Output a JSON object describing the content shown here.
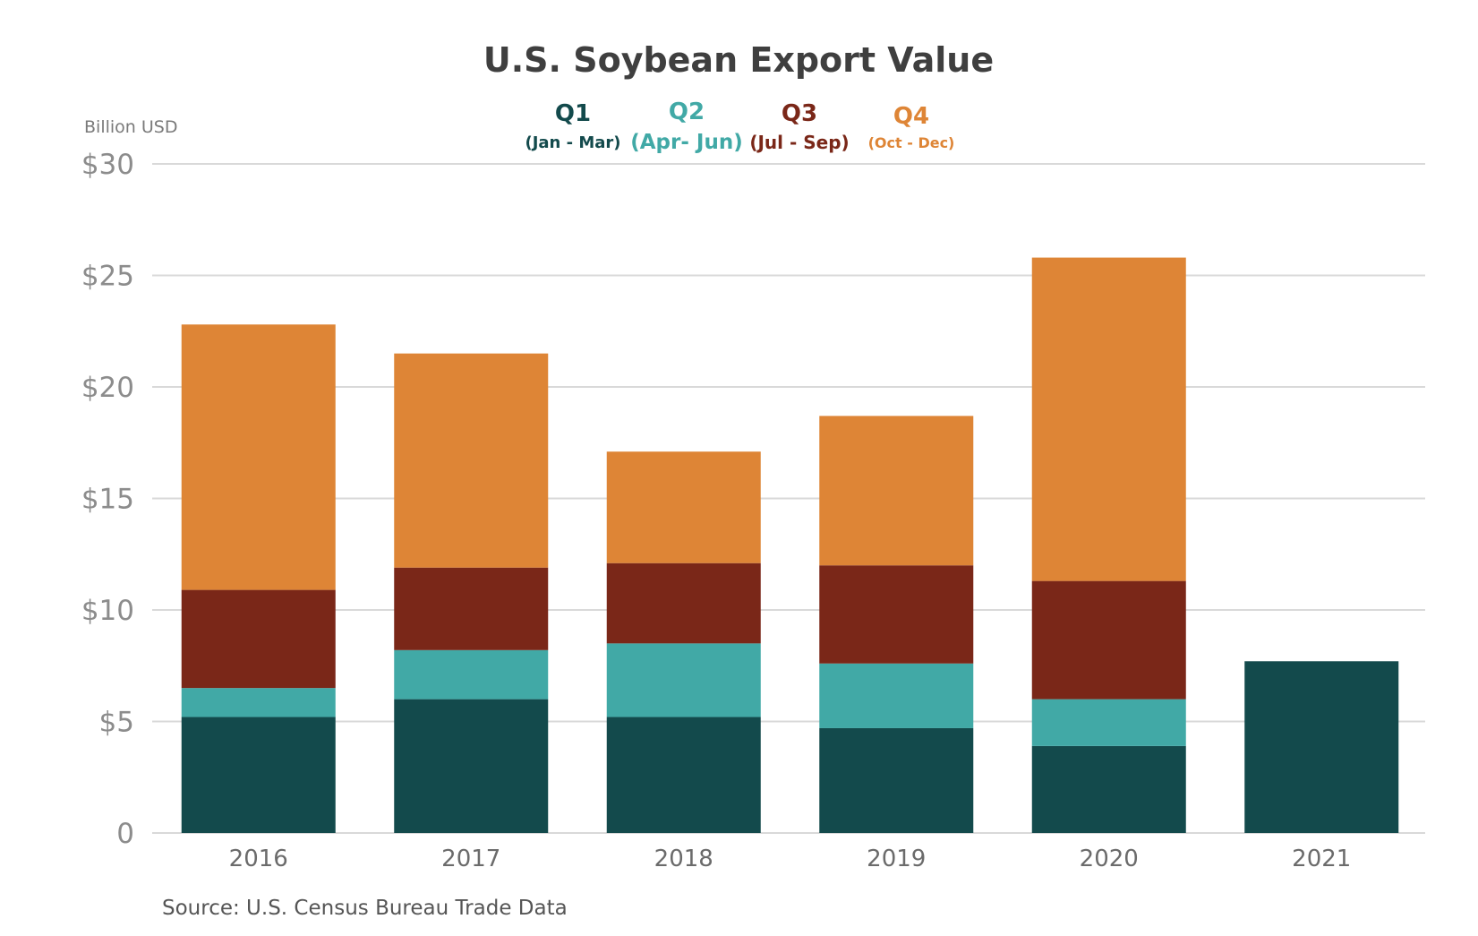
{
  "chart_data": {
    "type": "bar",
    "stacked": true,
    "title": "U.S. Soybean Export Value",
    "ylabel": "Billion USD",
    "xlabel": "",
    "source": "Source: U.S. Census Bureau Trade Data",
    "ylim": [
      0,
      30
    ],
    "yticks": [
      0,
      5,
      10,
      15,
      20,
      25,
      30
    ],
    "ytick_labels": [
      "0",
      "$5",
      "$10",
      "$15",
      "$20",
      "$25",
      "$30"
    ],
    "grid": true,
    "legend_position": "top-center",
    "categories": [
      "2016",
      "2017",
      "2018",
      "2019",
      "2020",
      "2021"
    ],
    "series": [
      {
        "name": "Q1",
        "sublabel": "(Jan - Mar)",
        "color": "#134a4c",
        "values": [
          5.2,
          6.0,
          5.2,
          4.7,
          3.9,
          7.7
        ]
      },
      {
        "name": "Q2",
        "sublabel": "(Apr- Jun)",
        "color": "#41a9a6",
        "values": [
          1.3,
          2.2,
          3.3,
          2.9,
          2.1,
          null
        ]
      },
      {
        "name": "Q3",
        "sublabel": "(Jul - Sep)",
        "color": "#7a2718",
        "values": [
          4.4,
          3.7,
          3.6,
          4.4,
          5.3,
          null
        ]
      },
      {
        "name": "Q4",
        "sublabel": "(Oct - Dec)",
        "color": "#de8536",
        "values": [
          11.9,
          9.6,
          5.0,
          6.7,
          14.5,
          null
        ]
      }
    ]
  }
}
